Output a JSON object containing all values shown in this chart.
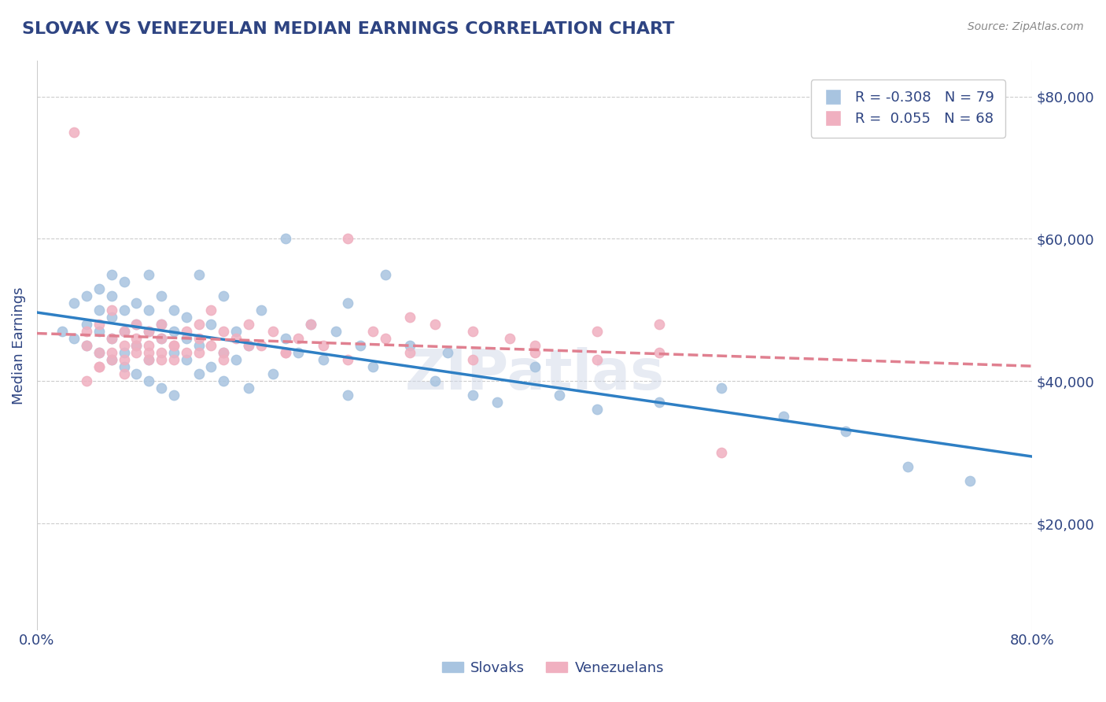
{
  "title": "SLOVAK VS VENEZUELAN MEDIAN EARNINGS CORRELATION CHART",
  "source_text": "Source: ZipAtlas.com",
  "xlabel": "",
  "ylabel": "Median Earnings",
  "xlim": [
    0.0,
    0.8
  ],
  "ylim": [
    5000,
    85000
  ],
  "xtick_labels": [
    "0.0%",
    "80.0%"
  ],
  "ytick_labels": [
    "$20,000",
    "$40,000",
    "$60,000",
    "$80,000"
  ],
  "ytick_values": [
    20000,
    40000,
    60000,
    80000
  ],
  "title_color": "#2e4482",
  "axis_label_color": "#2e4482",
  "tick_color": "#2e4482",
  "background_color": "#ffffff",
  "slovak_color": "#a8c4e0",
  "venezuelan_color": "#f0b0c0",
  "slovak_line_color": "#2e7fc4",
  "venezuelan_line_color": "#e08090",
  "legend_R_slovak": "-0.308",
  "legend_N_slovak": "79",
  "legend_R_venezuelan": "0.055",
  "legend_N_venezuelan": "68",
  "watermark": "ZIPatlas",
  "slovak_x": [
    0.02,
    0.03,
    0.03,
    0.04,
    0.04,
    0.04,
    0.05,
    0.05,
    0.05,
    0.05,
    0.06,
    0.06,
    0.06,
    0.06,
    0.06,
    0.07,
    0.07,
    0.07,
    0.07,
    0.07,
    0.08,
    0.08,
    0.08,
    0.08,
    0.09,
    0.09,
    0.09,
    0.09,
    0.09,
    0.1,
    0.1,
    0.1,
    0.1,
    0.11,
    0.11,
    0.11,
    0.11,
    0.12,
    0.12,
    0.12,
    0.13,
    0.13,
    0.13,
    0.14,
    0.14,
    0.15,
    0.15,
    0.15,
    0.16,
    0.16,
    0.17,
    0.17,
    0.18,
    0.19,
    0.2,
    0.2,
    0.21,
    0.22,
    0.23,
    0.24,
    0.25,
    0.25,
    0.26,
    0.27,
    0.28,
    0.3,
    0.32,
    0.33,
    0.35,
    0.37,
    0.4,
    0.42,
    0.45,
    0.5,
    0.55,
    0.6,
    0.65,
    0.7,
    0.75
  ],
  "slovak_y": [
    47000,
    46000,
    51000,
    48000,
    52000,
    45000,
    44000,
    50000,
    53000,
    47000,
    43000,
    49000,
    46000,
    52000,
    55000,
    44000,
    47000,
    50000,
    54000,
    42000,
    41000,
    48000,
    45000,
    51000,
    43000,
    47000,
    50000,
    55000,
    40000,
    46000,
    48000,
    52000,
    39000,
    44000,
    47000,
    50000,
    38000,
    43000,
    46000,
    49000,
    41000,
    45000,
    55000,
    42000,
    48000,
    40000,
    44000,
    52000,
    43000,
    47000,
    39000,
    45000,
    50000,
    41000,
    46000,
    60000,
    44000,
    48000,
    43000,
    47000,
    38000,
    51000,
    45000,
    42000,
    55000,
    45000,
    40000,
    44000,
    38000,
    37000,
    42000,
    38000,
    36000,
    37000,
    39000,
    35000,
    33000,
    28000,
    26000
  ],
  "venezuelan_x": [
    0.03,
    0.04,
    0.04,
    0.05,
    0.05,
    0.05,
    0.06,
    0.06,
    0.06,
    0.07,
    0.07,
    0.07,
    0.08,
    0.08,
    0.08,
    0.09,
    0.09,
    0.09,
    0.1,
    0.1,
    0.1,
    0.11,
    0.11,
    0.12,
    0.12,
    0.13,
    0.13,
    0.14,
    0.14,
    0.15,
    0.15,
    0.16,
    0.17,
    0.18,
    0.19,
    0.2,
    0.21,
    0.22,
    0.23,
    0.25,
    0.27,
    0.28,
    0.3,
    0.32,
    0.35,
    0.38,
    0.4,
    0.45,
    0.5,
    0.55,
    0.04,
    0.05,
    0.06,
    0.07,
    0.08,
    0.09,
    0.1,
    0.11,
    0.13,
    0.15,
    0.17,
    0.2,
    0.25,
    0.3,
    0.35,
    0.4,
    0.45,
    0.5
  ],
  "venezuelan_y": [
    75000,
    47000,
    45000,
    48000,
    44000,
    42000,
    46000,
    43000,
    50000,
    45000,
    47000,
    41000,
    44000,
    48000,
    46000,
    43000,
    47000,
    45000,
    44000,
    46000,
    48000,
    45000,
    43000,
    47000,
    44000,
    46000,
    48000,
    45000,
    50000,
    44000,
    47000,
    46000,
    48000,
    45000,
    47000,
    44000,
    46000,
    48000,
    45000,
    60000,
    47000,
    46000,
    49000,
    48000,
    47000,
    46000,
    45000,
    47000,
    48000,
    30000,
    40000,
    42000,
    44000,
    43000,
    45000,
    44000,
    43000,
    45000,
    44000,
    43000,
    45000,
    44000,
    43000,
    44000,
    43000,
    44000,
    43000,
    44000
  ]
}
